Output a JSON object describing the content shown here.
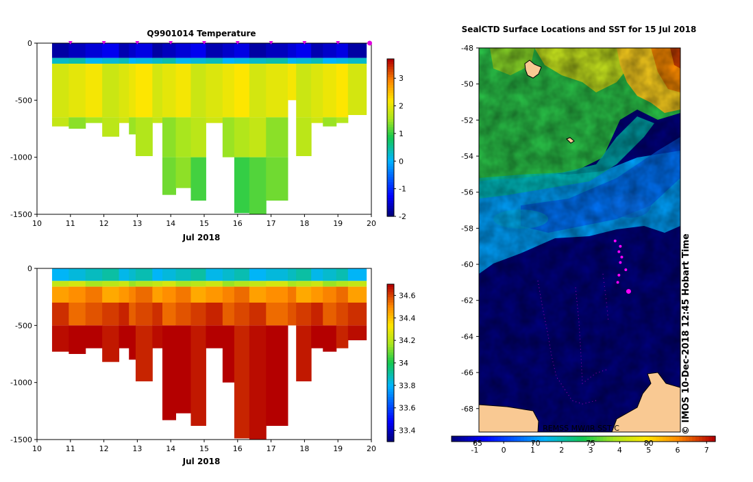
{
  "chart_data": [
    {
      "type": "heatmap",
      "title": "Q9901014  Temperature",
      "xlabel": "Jul 2018",
      "x_ticks": [
        "10",
        "11",
        "12",
        "13",
        "14",
        "15",
        "16",
        "17",
        "18",
        "19",
        "20"
      ],
      "y_ticks": [
        "0",
        "-500",
        "-1000",
        "-1500"
      ],
      "xlim": [
        10,
        20
      ],
      "ylim": [
        -1500,
        0
      ],
      "colorbar_ticks": [
        "3",
        "2",
        "1",
        "0",
        "-1",
        "-2"
      ],
      "colorbar_range": [
        -2,
        3.7
      ],
      "profile_dates": [
        10.45,
        10.95,
        11.45,
        11.95,
        12.45,
        12.75,
        12.95,
        13.45,
        13.75,
        14.15,
        14.6,
        15.05,
        15.55,
        15.9,
        16.35,
        16.85,
        17.5,
        17.75,
        18.2,
        18.55,
        18.95,
        19.3
      ],
      "profile_max_depth": [
        -730,
        -750,
        -700,
        -820,
        -700,
        -800,
        -990,
        -700,
        -1330,
        -1270,
        -1380,
        -700,
        -1000,
        -1490,
        -1500,
        -1380,
        -500,
        -990,
        -700,
        -730,
        -700,
        -630
      ],
      "layers": [
        {
          "top": 0,
          "bottom": -130,
          "value": -1.6
        },
        {
          "top": -130,
          "bottom": -180,
          "value": 0.2
        },
        {
          "top": -180,
          "bottom": -650,
          "value": 2.0
        },
        {
          "top": -650,
          "bottom": -1000,
          "value": 1.6
        },
        {
          "top": -1000,
          "bottom": -1500,
          "value": 1.2
        }
      ]
    },
    {
      "type": "heatmap",
      "title": "",
      "xlabel": "Jul 2018",
      "x_ticks": [
        "10",
        "11",
        "12",
        "13",
        "14",
        "15",
        "16",
        "17",
        "18",
        "19",
        "20"
      ],
      "y_ticks": [
        "0",
        "-500",
        "-1000",
        "-1500"
      ],
      "xlim": [
        10,
        20
      ],
      "ylim": [
        -1500,
        0
      ],
      "colorbar_ticks": [
        "34.6",
        "34.4",
        "34.2",
        "34",
        "33.8",
        "33.6",
        "33.4"
      ],
      "colorbar_range": [
        33.3,
        34.7
      ],
      "profile_dates": [
        10.45,
        10.95,
        11.45,
        11.95,
        12.45,
        12.75,
        12.95,
        13.45,
        13.75,
        14.15,
        14.6,
        15.05,
        15.55,
        15.9,
        16.35,
        16.85,
        17.5,
        17.75,
        18.2,
        18.55,
        18.95,
        19.3
      ],
      "profile_max_depth": [
        -730,
        -750,
        -700,
        -820,
        -700,
        -800,
        -990,
        -700,
        -1330,
        -1270,
        -1380,
        -700,
        -1000,
        -1490,
        -1500,
        -1380,
        -500,
        -990,
        -700,
        -730,
        -700,
        -630
      ],
      "layers": [
        {
          "top": 0,
          "bottom": -110,
          "value": 33.85
        },
        {
          "top": -110,
          "bottom": -160,
          "value": 34.2
        },
        {
          "top": -160,
          "bottom": -300,
          "value": 34.5
        },
        {
          "top": -300,
          "bottom": -500,
          "value": 34.6
        },
        {
          "top": -500,
          "bottom": -1500,
          "value": 34.7
        }
      ]
    },
    {
      "type": "heatmap",
      "title": "SealCTD Surface Locations and SST for 15 Jul 2018",
      "y_ticks": [
        "-48",
        "-50",
        "-52",
        "-54",
        "-56",
        "-58",
        "-60",
        "-62",
        "-64",
        "-66",
        "-68"
      ],
      "ylim": [
        -69.3,
        -48
      ],
      "colorbar_ticks": [
        "-1",
        "0",
        "1",
        "2",
        "3",
        "4",
        "5",
        "6",
        "7"
      ],
      "colorbar_range": [
        -1.8,
        7.3
      ],
      "fahrenheit_ticks": [
        "65",
        "70",
        "75",
        "80"
      ],
      "watermark": "REMSS MW/IR SST C",
      "side_text": "© IMOS 10-Dec-2018 12:45 Hobart Time",
      "seal_positions": [
        {
          "x": 0.676,
          "y": -58.7
        },
        {
          "x": 0.702,
          "y": -59.0
        },
        {
          "x": 0.695,
          "y": -59.3
        },
        {
          "x": 0.709,
          "y": -59.6
        },
        {
          "x": 0.702,
          "y": -59.9
        },
        {
          "x": 0.729,
          "y": -60.3
        },
        {
          "x": 0.695,
          "y": -60.6
        },
        {
          "x": 0.689,
          "y": -61.0
        },
        {
          "x": 0.743,
          "y": -61.5
        }
      ]
    }
  ]
}
